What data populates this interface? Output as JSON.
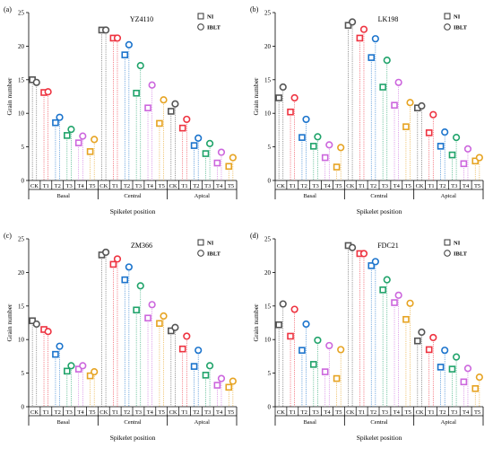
{
  "series_colors": [
    "#555555",
    "#ee3340",
    "#1a73cc",
    "#1fa36a",
    "#cc66dd",
    "#e6a321"
  ],
  "chart_data": [
    {
      "type": "scatter",
      "panel_label": "(a)",
      "title": "YZ4110",
      "ylabel": "Grain number",
      "xlabel": "Spikelet position",
      "ylim": [
        0,
        25
      ],
      "yticks": [
        0,
        5,
        10,
        15,
        20,
        25
      ],
      "categories": [
        "CK",
        "T1",
        "T2",
        "T3",
        "T4",
        "T5"
      ],
      "groups": [
        "Basal",
        "Central",
        "Apical"
      ],
      "legend": [
        "NI",
        "IBLT"
      ],
      "legend_position": "top-right",
      "series": [
        {
          "name": "NI",
          "values": [
            [
              15.0,
              13.1,
              8.6,
              6.7,
              5.6,
              4.3
            ],
            [
              22.4,
              21.2,
              18.7,
              13.0,
              10.8,
              8.5
            ],
            [
              10.3,
              7.8,
              5.2,
              4.0,
              2.6,
              2.1
            ]
          ]
        },
        {
          "name": "IBLT",
          "values": [
            [
              14.6,
              13.2,
              9.4,
              7.6,
              6.6,
              6.1
            ],
            [
              22.4,
              21.2,
              20.2,
              17.1,
              14.2,
              12.0
            ],
            [
              11.4,
              9.1,
              6.3,
              5.5,
              4.2,
              3.4
            ]
          ]
        }
      ]
    },
    {
      "type": "scatter",
      "panel_label": "(b)",
      "title": "LK198",
      "ylabel": "Grain number",
      "xlabel": "Spikelet position",
      "ylim": [
        0,
        25
      ],
      "yticks": [
        0,
        5,
        10,
        15,
        20,
        25
      ],
      "categories": [
        "CK",
        "T1",
        "T2",
        "T3",
        "T4",
        "T5"
      ],
      "groups": [
        "Basal",
        "Central",
        "Apical"
      ],
      "legend": [
        "NI",
        "IBLT"
      ],
      "legend_position": "top-right",
      "series": [
        {
          "name": "NI",
          "values": [
            [
              12.3,
              10.2,
              6.4,
              5.1,
              3.4,
              2.0
            ],
            [
              23.1,
              21.2,
              18.3,
              13.9,
              11.2,
              8.0
            ],
            [
              10.8,
              7.1,
              5.1,
              3.8,
              2.5,
              2.9
            ]
          ]
        },
        {
          "name": "IBLT",
          "values": [
            [
              13.9,
              12.3,
              9.1,
              6.5,
              5.3,
              4.9
            ],
            [
              23.6,
              22.5,
              21.1,
              17.9,
              14.6,
              11.6
            ],
            [
              11.1,
              9.8,
              7.2,
              6.4,
              4.7,
              3.4
            ]
          ]
        }
      ]
    },
    {
      "type": "scatter",
      "panel_label": "(c)",
      "title": "ZM366",
      "ylabel": "Grain number",
      "xlabel": "Spikelet position",
      "ylim": [
        0,
        25
      ],
      "yticks": [
        0,
        5,
        10,
        15,
        20,
        25
      ],
      "categories": [
        "CK",
        "T1",
        "T2",
        "T3",
        "T4",
        "T5"
      ],
      "groups": [
        "Basal",
        "Central",
        "Apical"
      ],
      "legend": [
        "NI",
        "IBLT"
      ],
      "legend_position": "top-right",
      "series": [
        {
          "name": "NI",
          "values": [
            [
              12.8,
              11.5,
              7.8,
              5.3,
              5.6,
              4.6
            ],
            [
              22.6,
              21.2,
              18.9,
              14.4,
              13.2,
              12.4
            ],
            [
              11.3,
              8.6,
              6.0,
              4.7,
              3.2,
              2.9
            ]
          ]
        },
        {
          "name": "IBLT",
          "values": [
            [
              12.3,
              11.2,
              9.0,
              6.1,
              6.1,
              5.2
            ],
            [
              23.0,
              22.0,
              20.8,
              18.0,
              15.2,
              13.5
            ],
            [
              11.8,
              10.5,
              8.4,
              6.1,
              4.2,
              3.8
            ]
          ]
        }
      ]
    },
    {
      "type": "scatter",
      "panel_label": "(d)",
      "title": "FDC21",
      "ylabel": "Grain number",
      "xlabel": "Spikelet position",
      "ylim": [
        0,
        25
      ],
      "yticks": [
        0,
        5,
        10,
        15,
        20,
        25
      ],
      "categories": [
        "CK",
        "T1",
        "T2",
        "T3",
        "T4",
        "T5"
      ],
      "groups": [
        "Basal",
        "Central",
        "Apical"
      ],
      "legend": [
        "NI",
        "IBLT"
      ],
      "legend_position": "top-right",
      "series": [
        {
          "name": "NI",
          "values": [
            [
              12.2,
              10.5,
              8.4,
              6.3,
              5.2,
              4.2
            ],
            [
              24.0,
              22.8,
              21.0,
              17.4,
              15.5,
              13.0
            ],
            [
              9.8,
              8.5,
              5.9,
              5.6,
              3.7,
              2.7
            ]
          ]
        },
        {
          "name": "IBLT",
          "values": [
            [
              15.3,
              14.5,
              12.3,
              9.9,
              9.1,
              8.5
            ],
            [
              23.7,
              22.8,
              21.6,
              18.9,
              16.6,
              15.4
            ],
            [
              11.1,
              10.3,
              8.4,
              7.4,
              5.7,
              4.4
            ]
          ]
        }
      ]
    }
  ]
}
